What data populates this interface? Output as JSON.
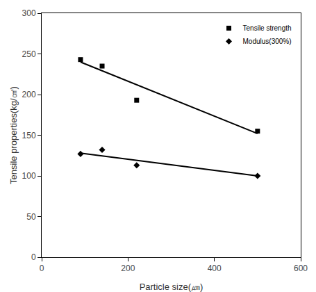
{
  "chart_data": {
    "type": "scatter",
    "x_label": "Particle size(㎛)",
    "y_label": "Tensile properties(kg/㎠)",
    "xlim": [
      0,
      600
    ],
    "xticks": [
      0,
      200,
      400,
      600
    ],
    "ylim": [
      0,
      300
    ],
    "yticks": [
      0,
      50,
      100,
      150,
      200,
      250,
      300
    ],
    "grid": false,
    "legend": "upper right",
    "series": [
      {
        "name": "Tensile strength",
        "color": "#000000",
        "marker": "square",
        "x": [
          90,
          140,
          220,
          500
        ],
        "values": [
          243,
          235,
          193,
          155
        ],
        "trend": {
          "x": [
            90,
            500
          ],
          "values": [
            240,
            152
          ]
        }
      },
      {
        "name": "Modulus(300%)",
        "color": "#000000",
        "marker": "diamond",
        "x": [
          90,
          140,
          220,
          500
        ],
        "values": [
          127,
          132,
          113,
          100
        ],
        "trend": {
          "x": [
            90,
            500
          ],
          "values": [
            128,
            100
          ]
        }
      }
    ]
  }
}
